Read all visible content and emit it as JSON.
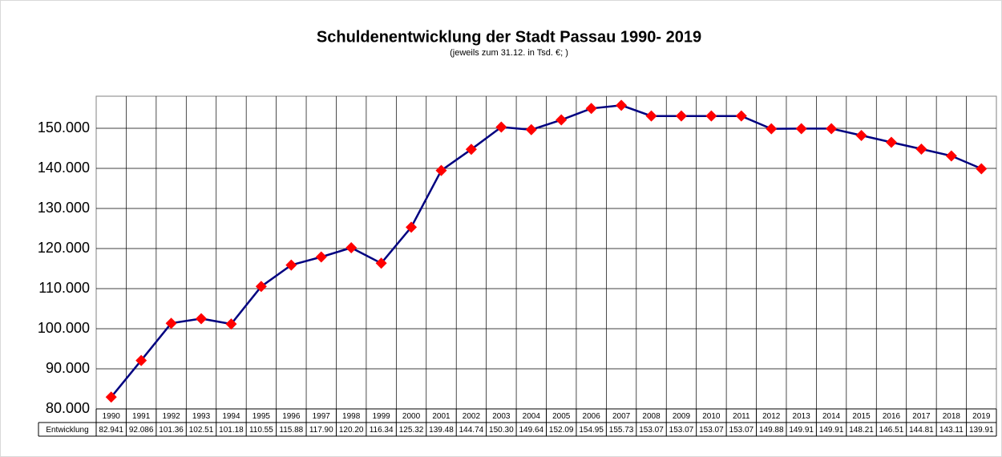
{
  "chart_data": {
    "type": "line",
    "title": "Schuldenentwicklung der Stadt Passau 1990- 2019",
    "subtitle": "(jeweils zum  31.12. in Tsd. €; )",
    "categories": [
      "1990",
      "1991",
      "1992",
      "1993",
      "1994",
      "1995",
      "1996",
      "1997",
      "1998",
      "1999",
      "2000",
      "2001",
      "2002",
      "2003",
      "2004",
      "2005",
      "2006",
      "2007",
      "2008",
      "2009",
      "2010",
      "2011",
      "2012",
      "2013",
      "2014",
      "2015",
      "2016",
      "2017",
      "2018",
      "2019"
    ],
    "series": [
      {
        "name": "Entwicklung",
        "color": "#000080",
        "marker_color": "#ff0000",
        "values": [
          82941,
          92086,
          101360,
          102510,
          101180,
          110550,
          115880,
          117900,
          120200,
          116340,
          125320,
          139480,
          144740,
          150300,
          149640,
          152090,
          154950,
          155730,
          153070,
          153070,
          153070,
          153070,
          149880,
          149910,
          149910,
          148210,
          146510,
          144810,
          143110,
          139910
        ],
        "value_labels": [
          "82.941",
          "92.086",
          "101.36",
          "102.51",
          "101.18",
          "110.55",
          "115.88",
          "117.90",
          "120.20",
          "116.34",
          "125.32",
          "139.48",
          "144.74",
          "150.30",
          "149.64",
          "152.09",
          "154.95",
          "155.73",
          "153.07",
          "153.07",
          "153.07",
          "153.07",
          "149.88",
          "149.91",
          "149.91",
          "148.21",
          "146.51",
          "144.81",
          "143.11",
          "139.91"
        ]
      }
    ],
    "ylim": [
      80000,
      158000
    ],
    "yticks": [
      {
        "value": 80000,
        "label": "80.000"
      },
      {
        "value": 90000,
        "label": "90.000"
      },
      {
        "value": 100000,
        "label": "100.000"
      },
      {
        "value": 110000,
        "label": "110.000"
      },
      {
        "value": 120000,
        "label": "120.000"
      },
      {
        "value": 130000,
        "label": "130.000"
      },
      {
        "value": 140000,
        "label": "140.000"
      },
      {
        "value": 150000,
        "label": "150.000"
      }
    ],
    "grid": true
  }
}
